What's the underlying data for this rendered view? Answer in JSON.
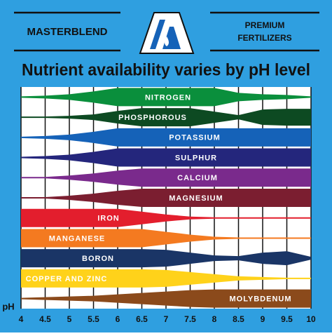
{
  "header": {
    "brand": "MASTERBLEND",
    "tagline_line1": "PREMIUM",
    "tagline_line2": "FERTILIZERS",
    "title": "Nutrient availability varies by pH level"
  },
  "nutrients": [
    {
      "name": "NITROGEN",
      "color": "#0a8f3c"
    },
    {
      "name": "PHOSPHOROUS",
      "color": "#0d4a22"
    },
    {
      "name": "POTASSIUM",
      "color": "#1562b8"
    },
    {
      "name": "SULPHUR",
      "color": "#24267c"
    },
    {
      "name": "CALCIUM",
      "color": "#7a2a8c"
    },
    {
      "name": "MAGNESIUM",
      "color": "#7b1e30"
    },
    {
      "name": "IRON",
      "color": "#e31e2d"
    },
    {
      "name": "MANGANESE",
      "color": "#f47a20"
    },
    {
      "name": "BORON",
      "color": "#1a3566"
    },
    {
      "name": "COPPER AND ZINC",
      "color": "#ffd21a"
    },
    {
      "name": "MOLYBDENUM",
      "color": "#8b4a1b"
    }
  ],
  "axis": {
    "label": "pH",
    "ticks": [
      "4",
      "4.5",
      "5",
      "5.5",
      "6",
      "6.5",
      "7",
      "7.5",
      "8",
      "8.5",
      "9",
      "9.5",
      "10"
    ]
  }
}
